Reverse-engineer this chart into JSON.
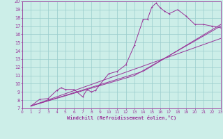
{
  "xlabel": "Windchill (Refroidissement éolien,°C)",
  "bg_color": "#cceee8",
  "grid_color": "#99cccc",
  "line_color": "#993399",
  "spine_color": "#993399",
  "xlim": [
    0,
    23
  ],
  "ylim": [
    7,
    20
  ],
  "xticks": [
    0,
    1,
    2,
    3,
    4,
    5,
    6,
    7,
    8,
    9,
    10,
    11,
    12,
    13,
    14,
    15,
    16,
    17,
    18,
    19,
    20,
    21,
    22,
    23
  ],
  "yticks": [
    7,
    8,
    9,
    10,
    11,
    12,
    13,
    14,
    15,
    16,
    17,
    18,
    19,
    20
  ],
  "series1_x": [
    1,
    2,
    3,
    4,
    4.5,
    5,
    6,
    7,
    7.5,
    8,
    8.5,
    9,
    10,
    11,
    12,
    13,
    14,
    14.5,
    15,
    15.5,
    16,
    16.5,
    17,
    18,
    19,
    20,
    21,
    22,
    23
  ],
  "series1_y": [
    7.3,
    8.1,
    8.2,
    9.2,
    9.5,
    9.3,
    9.3,
    8.4,
    9.3,
    9.0,
    9.2,
    9.9,
    11.2,
    11.5,
    12.3,
    14.7,
    17.8,
    17.8,
    19.3,
    19.8,
    19.2,
    18.8,
    18.5,
    19.0,
    18.2,
    17.2,
    17.2,
    17.0,
    16.8
  ],
  "series2_x": [
    1,
    23
  ],
  "series2_y": [
    7.3,
    15.5
  ],
  "series3_x": [
    1,
    14,
    23
  ],
  "series3_y": [
    7.3,
    11.5,
    17.2
  ],
  "series4_x": [
    1,
    13,
    23
  ],
  "series4_y": [
    7.3,
    11.0,
    17.0
  ]
}
